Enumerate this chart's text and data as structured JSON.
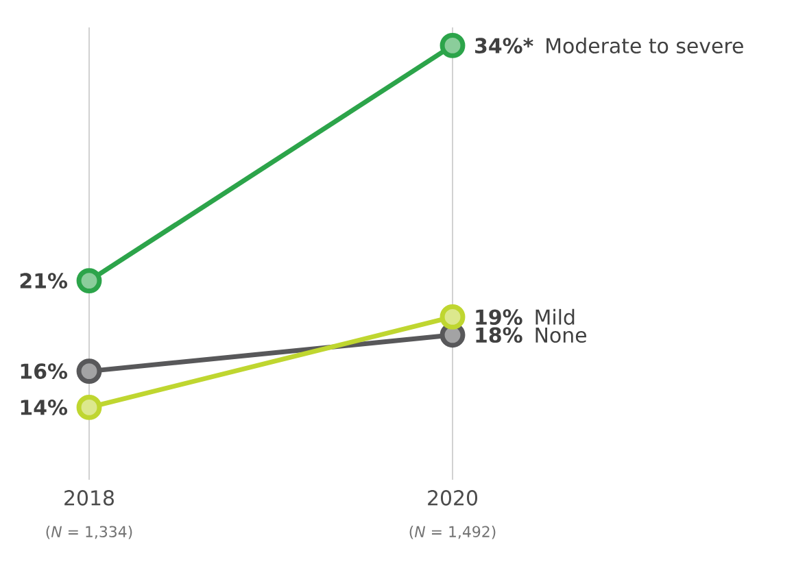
{
  "chart_data": {
    "type": "line",
    "categories": [
      "2018",
      "2020"
    ],
    "ylim": [
      10,
      35
    ],
    "grid": "x",
    "marker": "circle",
    "tick_labels": "x",
    "series": [
      {
        "name": "Moderate to severe",
        "color": "#2ca44a",
        "values": [
          21,
          34
        ],
        "value_labels": [
          "21%",
          "34%*"
        ]
      },
      {
        "name": "None",
        "color": "#58585a",
        "values": [
          16,
          18
        ],
        "value_labels": [
          "16%",
          "18%"
        ]
      },
      {
        "name": "Mild",
        "color": "#bfd630",
        "values": [
          14,
          19
        ],
        "value_labels": [
          "14%",
          "19%"
        ]
      }
    ],
    "annotations": [
      "(*N* = 1,334)",
      "(*N* = 1,492)"
    ]
  }
}
